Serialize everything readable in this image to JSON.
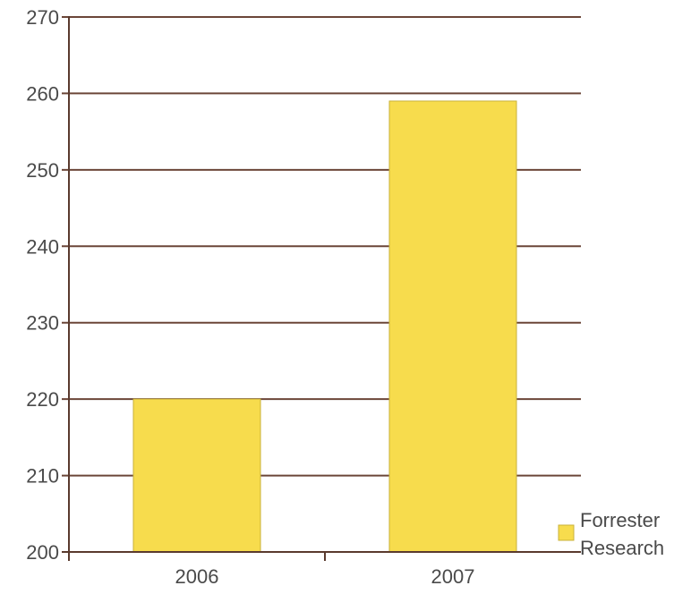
{
  "chart_data": {
    "type": "bar",
    "categories": [
      "2006",
      "2007"
    ],
    "series": [
      {
        "name": "Forrester Research",
        "values": [
          220,
          259
        ]
      }
    ],
    "ylim": [
      200,
      270
    ],
    "y_ticks": [
      200,
      210,
      220,
      230,
      240,
      250,
      260,
      270
    ],
    "title": "",
    "xlabel": "",
    "ylabel": "",
    "grid": true,
    "legend": {
      "placement": "bottom-right",
      "lines": [
        "Forrester",
        "Research"
      ]
    },
    "colors": {
      "bar_fill": "#f7dc4d",
      "bar_stroke": "#c9b23a",
      "axis": "#5a3a2e",
      "grid": "#6b4638",
      "text": "#4a4a4a"
    }
  }
}
